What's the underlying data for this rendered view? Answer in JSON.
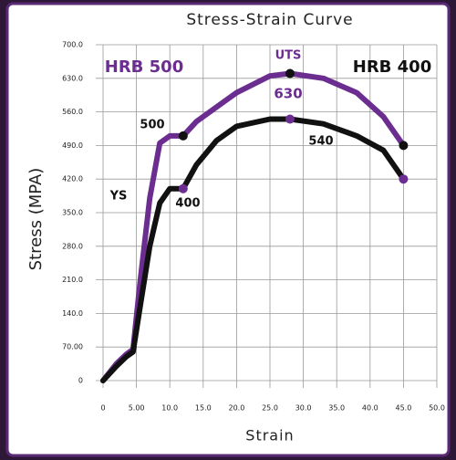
{
  "chart_data": {
    "type": "line",
    "title": "Stress-Strain Curve",
    "x_label": "Strain",
    "y_label": "Stress (MPA)",
    "xlim": [
      0,
      50
    ],
    "ylim": [
      0,
      700
    ],
    "xticks": [
      0,
      {
        "value": 5,
        "label": "5.00"
      },
      {
        "value": 10,
        "label": "10.0"
      },
      {
        "value": 15,
        "label": "15.0"
      },
      {
        "value": 20,
        "label": "20.0"
      },
      {
        "value": 25,
        "label": "25.0"
      },
      {
        "value": 30,
        "label": "30.0"
      },
      {
        "value": 35,
        "label": "35.0"
      },
      {
        "value": 40,
        "label": "40.0"
      },
      {
        "value": 45,
        "label": "45.0"
      },
      {
        "value": 50,
        "label": "50.0"
      }
    ],
    "yticks": [
      0,
      {
        "value": 70,
        "label": "70.00"
      },
      {
        "value": 140,
        "label": "140.0"
      },
      {
        "value": 210,
        "label": "210.0"
      },
      {
        "value": 280,
        "label": "280.0"
      },
      {
        "value": 350,
        "label": "350.0"
      },
      {
        "value": 420,
        "label": "420.0"
      },
      {
        "value": 490,
        "label": "490.0"
      },
      {
        "value": 560,
        "label": "560.0"
      },
      {
        "value": 630,
        "label": "630.0"
      },
      {
        "value": 700,
        "label": "700.0"
      }
    ],
    "grid": true,
    "series": [
      {
        "name": "HRB 500",
        "color": "#6b2d8f",
        "x": [
          0,
          2,
          3.5,
          4.5,
          5.5,
          7,
          8.5,
          10,
          12,
          14,
          17,
          20,
          25,
          28,
          33,
          38,
          42,
          45
        ],
        "values": [
          0,
          35,
          55,
          65,
          200,
          380,
          495,
          510,
          510,
          540,
          570,
          600,
          635,
          640,
          630,
          600,
          550,
          490
        ]
      },
      {
        "name": "HRB 400",
        "color": "#111111",
        "x": [
          0,
          2,
          3.5,
          4.5,
          5.5,
          7,
          8.5,
          10,
          12,
          14,
          17,
          20,
          25,
          28,
          33,
          38,
          42,
          45
        ],
        "values": [
          0,
          30,
          50,
          60,
          150,
          280,
          370,
          400,
          400,
          450,
          500,
          530,
          545,
          545,
          535,
          510,
          480,
          420
        ]
      }
    ],
    "annotations": [
      "UTS",
      "630",
      "500",
      "540",
      "400",
      "YS"
    ]
  }
}
